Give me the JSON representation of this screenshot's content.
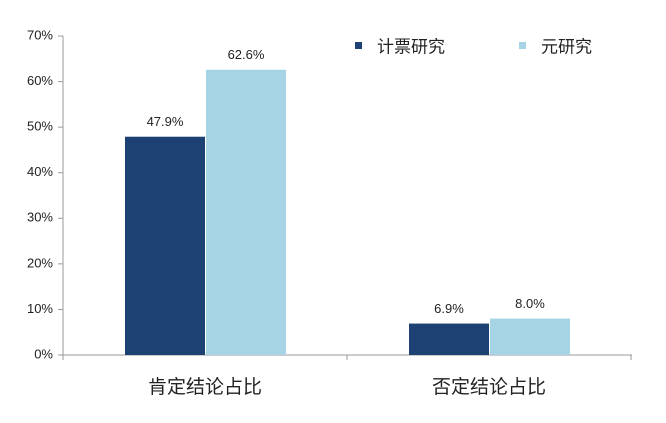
{
  "chart_data": {
    "type": "bar",
    "categories": [
      "肯定结论占比",
      "否定结论占比"
    ],
    "series": [
      {
        "name": "计票研究",
        "color": "#1e4173",
        "values": [
          47.9,
          6.9
        ],
        "value_labels": [
          "47.9%",
          "6.9%"
        ]
      },
      {
        "name": "元研究",
        "color": "#a6d4e4",
        "values": [
          62.6,
          8.0
        ],
        "value_labels": [
          "62.6%",
          "8.0%"
        ]
      }
    ],
    "ylim": [
      0,
      70
    ],
    "yticks": [
      {
        "value": 0,
        "label": "0%"
      },
      {
        "value": 10,
        "label": "10%"
      },
      {
        "value": 20,
        "label": "20%"
      },
      {
        "value": 30,
        "label": "30%"
      },
      {
        "value": 40,
        "label": "40%"
      },
      {
        "value": 50,
        "label": "50%"
      },
      {
        "value": 60,
        "label": "60%"
      },
      {
        "value": 70,
        "label": "70%"
      }
    ],
    "legend": "top-right"
  }
}
